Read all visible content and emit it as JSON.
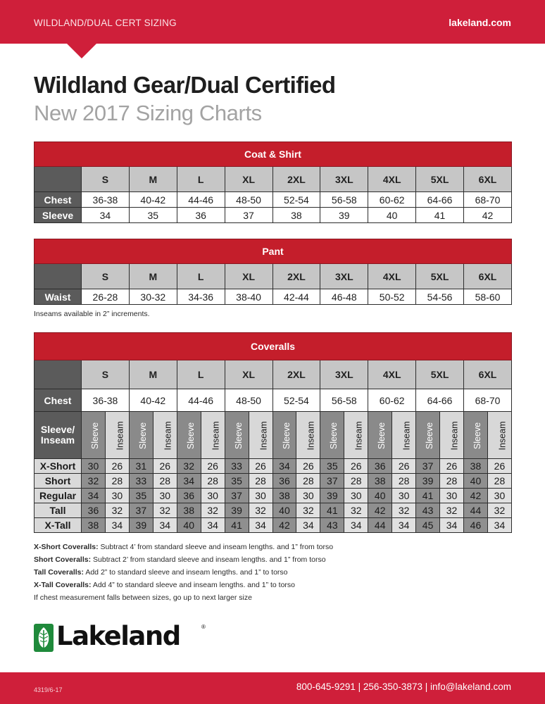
{
  "header": {
    "section_label": "WILDLAND/DUAL CERT SIZING",
    "site": "lakeland.com"
  },
  "title": "Wildland Gear/Dual Certified",
  "subtitle": "New 2017 Sizing Charts",
  "sizes": [
    "S",
    "M",
    "L",
    "XL",
    "2XL",
    "3XL",
    "4XL",
    "5XL",
    "6XL"
  ],
  "coat_shirt": {
    "title": "Coat & Shirt",
    "rows": [
      {
        "label": "Chest",
        "values": [
          "36-38",
          "40-42",
          "44-46",
          "48-50",
          "52-54",
          "56-58",
          "60-62",
          "64-66",
          "68-70"
        ]
      },
      {
        "label": "Sleeve",
        "values": [
          "34",
          "35",
          "36",
          "37",
          "38",
          "39",
          "40",
          "41",
          "42"
        ]
      }
    ]
  },
  "pant": {
    "title": "Pant",
    "rows": [
      {
        "label": "Waist",
        "values": [
          "26-28",
          "30-32",
          "34-36",
          "38-40",
          "42-44",
          "46-48",
          "50-52",
          "54-56",
          "58-60"
        ]
      }
    ],
    "note": "Inseams available in 2” increments."
  },
  "coveralls": {
    "title": "Coveralls",
    "chest_label": "Chest",
    "chest_values": [
      "36-38",
      "40-42",
      "44-46",
      "48-50",
      "52-54",
      "56-58",
      "60-62",
      "64-66",
      "68-70"
    ],
    "sub_label": "Sleeve/ Inseam",
    "sub_cols": [
      "Sleeve",
      "Inseam"
    ],
    "rows": [
      {
        "label": "X-Short",
        "sleeve": [
          "30",
          "31",
          "32",
          "33",
          "34",
          "35",
          "36",
          "37",
          "38"
        ],
        "inseam": [
          "26",
          "26",
          "26",
          "26",
          "26",
          "26",
          "26",
          "26",
          "26"
        ]
      },
      {
        "label": "Short",
        "sleeve": [
          "32",
          "33",
          "34",
          "35",
          "36",
          "37",
          "38",
          "39",
          "40"
        ],
        "inseam": [
          "28",
          "28",
          "28",
          "28",
          "28",
          "28",
          "28",
          "28",
          "28"
        ]
      },
      {
        "label": "Regular",
        "sleeve": [
          "34",
          "35",
          "36",
          "37",
          "38",
          "39",
          "40",
          "41",
          "42"
        ],
        "inseam": [
          "30",
          "30",
          "30",
          "30",
          "30",
          "30",
          "30",
          "30",
          "30"
        ]
      },
      {
        "label": "Tall",
        "sleeve": [
          "36",
          "37",
          "38",
          "39",
          "40",
          "41",
          "42",
          "43",
          "44"
        ],
        "inseam": [
          "32",
          "32",
          "32",
          "32",
          "32",
          "32",
          "32",
          "32",
          "32"
        ]
      },
      {
        "label": "X-Tall",
        "sleeve": [
          "38",
          "39",
          "40",
          "41",
          "42",
          "43",
          "44",
          "45",
          "46"
        ],
        "inseam": [
          "34",
          "34",
          "34",
          "34",
          "34",
          "34",
          "34",
          "34",
          "34"
        ]
      }
    ]
  },
  "notes": [
    {
      "bold": "X-Short Coveralls:",
      "text": " Subtract 4’ from standard sleeve and inseam lengths. and 1” from torso"
    },
    {
      "bold": "Short Coveralls:",
      "text": " Subtract 2’ from standard sleeve and inseam lengths. and 1” from torso"
    },
    {
      "bold": "Tall Coveralls:",
      "text": " Add 2” to standard sleeve and inseam lengths. and 1” to torso"
    },
    {
      "bold": "X-Tall Coveralls:",
      "text": " Add 4” to standard sleeve and inseam lengths. and 1” to torso"
    },
    {
      "bold": "",
      "text": "If chest measurement falls between sizes, go up to next larger size"
    }
  ],
  "logo": {
    "text": "Lakeland",
    "mark": "®",
    "icon": "leaf-icon"
  },
  "footer": {
    "code": "4319/6-17",
    "contact": "800-645-9291 | 256-350-3873 | info@lakeland.com"
  },
  "colors": {
    "brand_red": "#cf1f3a",
    "banner_red": "#c41e2b",
    "row_label_gray": "#5b5b5b",
    "size_gray": "#c6c6c6"
  }
}
